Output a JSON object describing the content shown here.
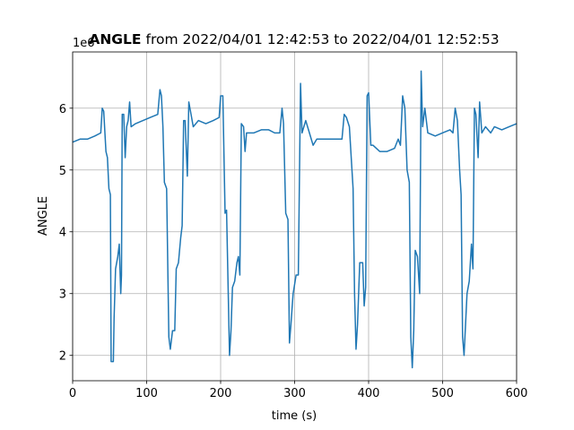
{
  "chart_data": {
    "type": "line",
    "title_bold": "ANGLE",
    "title": "from 2022/04/01 12:42:53 to 2022/04/01 12:52:53",
    "x_label": "time (s)",
    "y_label": "ANGLE",
    "y_offset_text": "1e6",
    "xlim": [
      0,
      600
    ],
    "xticks": [
      0,
      100,
      200,
      300,
      400,
      500,
      600
    ],
    "ylim": [
      1.59,
      6.91
    ],
    "yticks": [
      2,
      3,
      4,
      5,
      6
    ],
    "grid": true,
    "series": [
      {
        "name": "ANGLE",
        "color": "#1f77b4",
        "x": [
          0,
          10,
          20,
          30,
          38,
          40,
          42,
          45,
          47,
          49,
          51,
          52,
          55,
          56,
          58,
          61,
          63,
          65,
          66,
          67,
          69,
          71,
          73,
          75,
          77,
          79,
          85,
          95,
          105,
          115,
          118,
          120,
          122,
          124,
          127,
          130,
          132,
          135,
          138,
          140,
          143,
          146,
          148,
          150,
          152,
          155,
          157,
          160,
          163,
          170,
          180,
          190,
          198,
          200,
          203,
          206,
          208,
          212,
          214,
          216,
          219,
          222,
          224,
          226,
          228,
          231,
          233,
          235,
          245,
          255,
          265,
          273,
          280,
          283,
          285,
          288,
          291,
          293,
          295,
          298,
          302,
          305,
          308,
          310,
          315,
          320,
          325,
          330,
          340,
          350,
          360,
          364,
          367,
          370,
          374,
          377,
          379,
          381,
          383,
          385,
          388,
          392,
          394,
          396,
          398,
          400,
          403,
          406,
          415,
          425,
          435,
          440,
          443,
          446,
          449,
          452,
          455,
          457,
          459,
          461,
          463,
          466,
          469,
          471,
          473,
          476,
          480,
          490,
          500,
          510,
          514,
          517,
          520,
          523,
          525,
          527,
          529,
          531,
          533,
          536,
          539,
          541,
          543,
          545,
          548,
          550,
          553,
          558,
          565,
          570,
          580,
          590,
          600
        ],
        "values": [
          5.45,
          5.5,
          5.5,
          5.55,
          5.6,
          6.0,
          5.95,
          5.3,
          5.2,
          4.7,
          4.6,
          1.9,
          1.9,
          2.6,
          3.4,
          3.6,
          3.8,
          3.0,
          3.3,
          5.9,
          5.9,
          5.2,
          5.7,
          5.8,
          6.1,
          5.7,
          5.75,
          5.8,
          5.85,
          5.9,
          6.3,
          6.2,
          5.7,
          4.8,
          4.7,
          2.3,
          2.1,
          2.4,
          2.4,
          3.4,
          3.5,
          3.9,
          4.1,
          5.8,
          5.8,
          4.9,
          6.1,
          5.9,
          5.7,
          5.8,
          5.75,
          5.8,
          5.85,
          6.2,
          6.2,
          4.3,
          4.35,
          2.0,
          2.4,
          3.1,
          3.2,
          3.5,
          3.6,
          3.3,
          5.75,
          5.7,
          5.3,
          5.6,
          5.6,
          5.65,
          5.65,
          5.6,
          5.6,
          6.0,
          5.75,
          4.3,
          4.2,
          2.2,
          2.5,
          3.0,
          3.3,
          3.3,
          6.4,
          5.6,
          5.8,
          5.6,
          5.4,
          5.5,
          5.5,
          5.5,
          5.5,
          5.5,
          5.9,
          5.85,
          5.7,
          5.1,
          4.7,
          3.0,
          2.1,
          2.5,
          3.5,
          3.5,
          2.8,
          3.1,
          6.2,
          6.25,
          5.4,
          5.4,
          5.3,
          5.3,
          5.35,
          5.5,
          5.4,
          6.2,
          6.0,
          5.0,
          4.8,
          2.3,
          1.8,
          2.4,
          3.7,
          3.6,
          3.0,
          6.6,
          5.7,
          6.0,
          5.6,
          5.55,
          5.6,
          5.65,
          5.6,
          6.0,
          5.8,
          5.0,
          4.6,
          2.3,
          2.0,
          2.5,
          3.0,
          3.2,
          3.8,
          3.4,
          6.0,
          5.9,
          5.2,
          6.1,
          5.6,
          5.7,
          5.6,
          5.7,
          5.65,
          5.7,
          5.75
        ]
      }
    ]
  }
}
